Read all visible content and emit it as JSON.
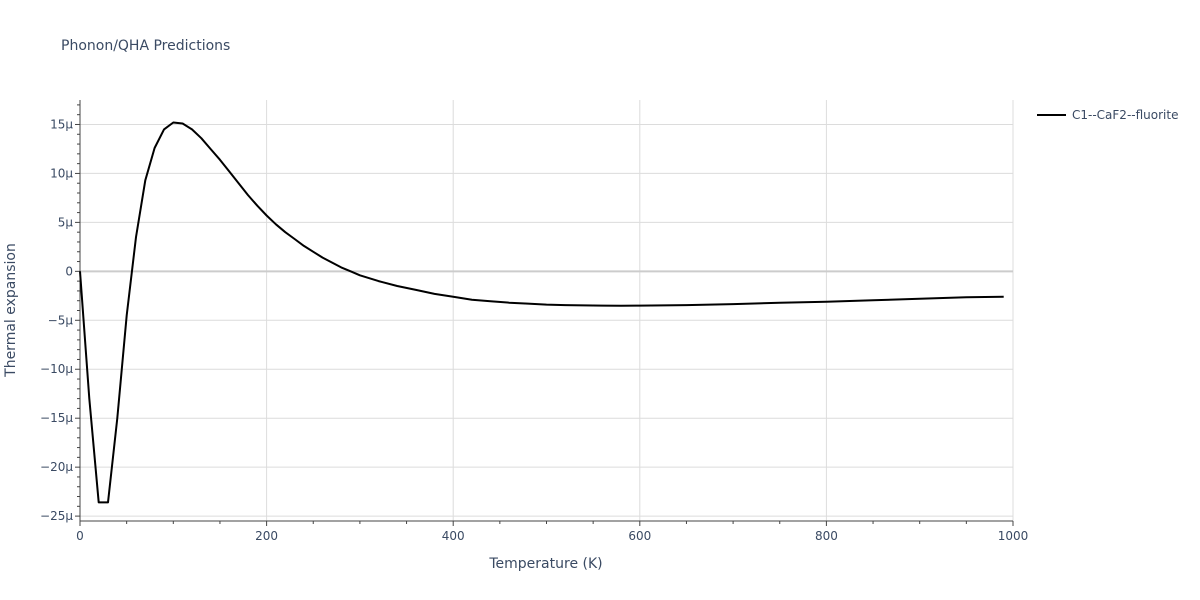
{
  "chart_data": {
    "type": "line",
    "title": "Phonon/QHA Predictions",
    "xlabel": "Temperature (K)",
    "ylabel": "Thermal expansion",
    "xlim": [
      0,
      1000
    ],
    "ylim": [
      -25.5,
      17.5
    ],
    "x_ticks": [
      0,
      200,
      400,
      600,
      800,
      1000
    ],
    "x_tick_labels": [
      "0",
      "200",
      "400",
      "600",
      "800",
      "1000"
    ],
    "y_ticks": [
      15,
      10,
      5,
      0,
      -5,
      -10,
      -15,
      -20,
      -25
    ],
    "y_tick_labels": [
      "15μ",
      "10μ",
      "5μ",
      "0",
      "−5μ",
      "−10μ",
      "−15μ",
      "−20μ",
      "−25μ"
    ],
    "grid": true,
    "legend_position": "top-right",
    "series": [
      {
        "name": "C1--CaF2--fluorite",
        "color": "#000000",
        "x": [
          0,
          10,
          20,
          30,
          40,
          50,
          60,
          70,
          80,
          90,
          100,
          110,
          120,
          130,
          140,
          150,
          160,
          170,
          180,
          190,
          200,
          210,
          220,
          230,
          240,
          250,
          260,
          270,
          280,
          290,
          300,
          320,
          340,
          360,
          380,
          400,
          420,
          440,
          460,
          480,
          500,
          520,
          540,
          560,
          580,
          600,
          650,
          700,
          750,
          800,
          850,
          900,
          950,
          990
        ],
        "y": [
          0,
          -13,
          -23.6,
          -23.6,
          -15,
          -4.5,
          3.5,
          9.3,
          12.6,
          14.5,
          15.2,
          15.1,
          14.5,
          13.6,
          12.5,
          11.4,
          10.2,
          9.0,
          7.8,
          6.7,
          5.7,
          4.8,
          4.0,
          3.3,
          2.6,
          2.0,
          1.4,
          0.9,
          0.4,
          0.0,
          -0.4,
          -1.0,
          -1.5,
          -1.9,
          -2.3,
          -2.6,
          -2.9,
          -3.05,
          -3.2,
          -3.3,
          -3.4,
          -3.45,
          -3.48,
          -3.5,
          -3.52,
          -3.5,
          -3.45,
          -3.35,
          -3.2,
          -3.1,
          -2.95,
          -2.8,
          -2.65,
          -2.6
        ]
      }
    ]
  }
}
